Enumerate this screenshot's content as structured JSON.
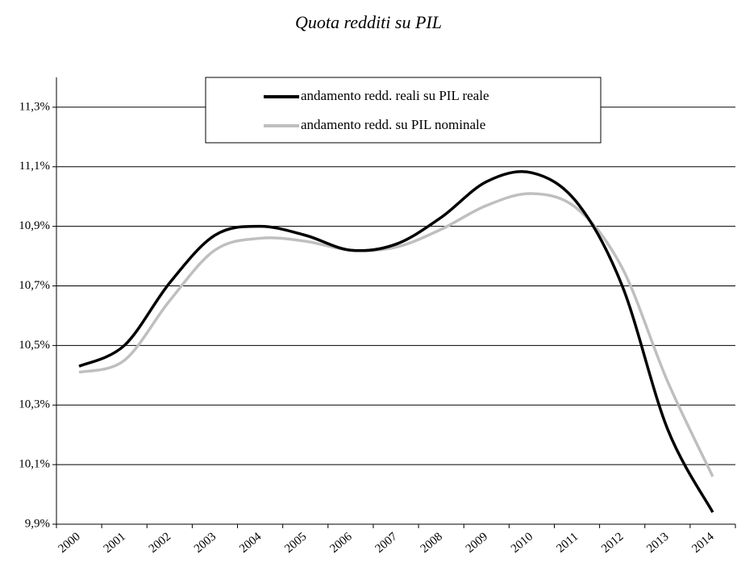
{
  "chart_data": {
    "type": "line",
    "title": "Quota redditi su PIL",
    "categories": [
      "2000",
      "2001",
      "2002",
      "2003",
      "2004",
      "2005",
      "2006",
      "2007",
      "2008",
      "2009",
      "2010",
      "2011",
      "2012",
      "2013",
      "2014"
    ],
    "series": [
      {
        "name": "andamento redd. reali su PIL reale",
        "color": "#000000",
        "values": [
          10.43,
          10.5,
          10.71,
          10.87,
          10.9,
          10.87,
          10.82,
          10.84,
          10.93,
          11.05,
          11.08,
          10.98,
          10.7,
          10.22,
          9.94
        ]
      },
      {
        "name": "andamento redd. su PIL nominale",
        "color": "#bfbfbf",
        "values": [
          10.41,
          10.45,
          10.65,
          10.82,
          10.86,
          10.85,
          10.82,
          10.83,
          10.89,
          10.97,
          11.01,
          10.96,
          10.76,
          10.38,
          10.06
        ]
      }
    ],
    "ylim": [
      9.9,
      11.4
    ],
    "yticks": [
      {
        "value": 9.9,
        "label": "9,9%"
      },
      {
        "value": 10.1,
        "label": "10,1%"
      },
      {
        "value": 10.3,
        "label": "10,3%"
      },
      {
        "value": 10.5,
        "label": "10,5%"
      },
      {
        "value": 10.7,
        "label": "10,7%"
      },
      {
        "value": 10.9,
        "label": "10,9%"
      },
      {
        "value": 11.1,
        "label": "11,1%"
      },
      {
        "value": 11.3,
        "label": "11,3%"
      }
    ],
    "grid": true,
    "legend": "top"
  }
}
